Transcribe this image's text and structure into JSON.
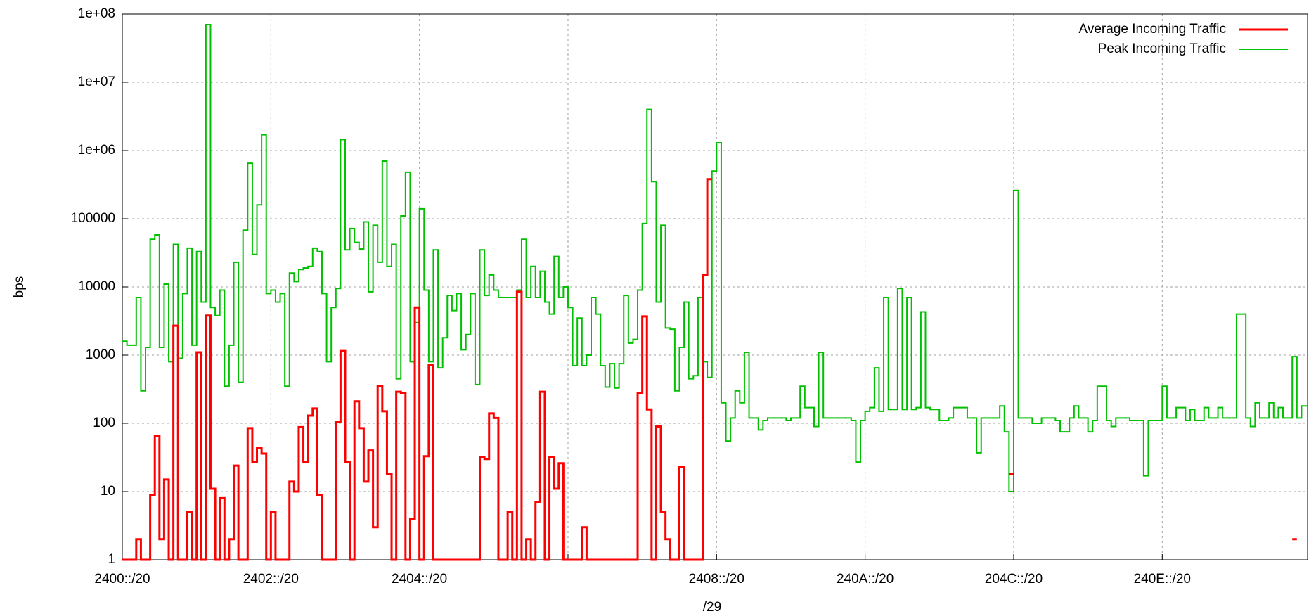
{
  "chart_data": {
    "type": "line",
    "step": true,
    "xlabel": "/29",
    "ylabel": "bps",
    "log_y": true,
    "grid": true,
    "legend": "upper right",
    "xlim": [
      0,
      255.3
    ],
    "xticks": [
      {
        "value": 0,
        "label": "2400::/20"
      },
      {
        "value": 32,
        "label": "2402::/20"
      },
      {
        "value": 64,
        "label": "2404::/20"
      },
      {
        "value": 96,
        "label": null
      },
      {
        "value": 128,
        "label": "2408::/20"
      },
      {
        "value": 160,
        "label": "240A::/20"
      },
      {
        "value": 192,
        "label": "204C::/20"
      },
      {
        "value": 224,
        "label": "240E::/20"
      }
    ],
    "ylim": [
      1,
      100000000
    ],
    "yticks": [
      1,
      10,
      100,
      1000,
      10000,
      100000,
      {
        "value": 1000000,
        "label": "1e+06"
      },
      {
        "value": 10000000,
        "label": "1e+07"
      },
      {
        "value": 100000000,
        "label": "1e+08"
      }
    ],
    "series": [
      {
        "name": "Average Incoming Traffic",
        "color": "#ff0000",
        "x": [
          0,
          3,
          4,
          6,
          7,
          8,
          9,
          10,
          11,
          12,
          14,
          15,
          16,
          17,
          18,
          19,
          20,
          21,
          22,
          23,
          24,
          25,
          27,
          28,
          29,
          30,
          31,
          32,
          33,
          36,
          37,
          38,
          39,
          40,
          41,
          42,
          43,
          46,
          47,
          48,
          49,
          50,
          51,
          52,
          53,
          54,
          55,
          56,
          57,
          58,
          59,
          60,
          61,
          62,
          63,
          64,
          65,
          66,
          67,
          76,
          77,
          78,
          79,
          80,
          81,
          83,
          84,
          85,
          86,
          87,
          88,
          89,
          90,
          91,
          92,
          93,
          94,
          95,
          99,
          100,
          111,
          112,
          113,
          114,
          115,
          116,
          117,
          118,
          120,
          121,
          125,
          126,
          127,
          191,
          192,
          252,
          253
        ],
        "values": [
          1,
          2,
          1,
          9,
          65,
          2,
          15,
          1,
          2700,
          1,
          5,
          1,
          1100,
          1,
          3800,
          11,
          1,
          8,
          1,
          2,
          24,
          1,
          85,
          27,
          43,
          36,
          1,
          5,
          1,
          14,
          10,
          88,
          27,
          130,
          165,
          9,
          1,
          105,
          1150,
          27,
          1,
          210,
          85,
          14,
          40,
          3,
          350,
          150,
          18,
          1,
          290,
          280,
          1,
          4,
          5000,
          1,
          33,
          720,
          1,
          1,
          32,
          30,
          140,
          120,
          1,
          5,
          1,
          8500,
          1,
          2,
          1,
          7,
          290,
          1,
          32,
          11,
          26,
          1,
          3,
          1,
          280,
          3700,
          160,
          1,
          90,
          5,
          2,
          1,
          23,
          1,
          15000,
          380000,
          null,
          18,
          null,
          2,
          null
        ]
      },
      {
        "name": "Peak Incoming Traffic",
        "color": "#00c000",
        "x": [
          0,
          1,
          3,
          4,
          5,
          6,
          7,
          8,
          9,
          10,
          11,
          12,
          13,
          14,
          15,
          16,
          17,
          18,
          19,
          20,
          21,
          22,
          23,
          24,
          25,
          26,
          27,
          28,
          29,
          30,
          31,
          32,
          33,
          34,
          35,
          36,
          37,
          38,
          39,
          40,
          41,
          42,
          43,
          44,
          45,
          46,
          47,
          48,
          49,
          50,
          51,
          52,
          53,
          54,
          55,
          56,
          57,
          58,
          59,
          60,
          61,
          62,
          63,
          64,
          65,
          66,
          67,
          68,
          69,
          70,
          71,
          72,
          73,
          74,
          75,
          76,
          77,
          78,
          79,
          80,
          81,
          82,
          83,
          84,
          85,
          86,
          87,
          88,
          89,
          90,
          91,
          92,
          93,
          94,
          95,
          96,
          97,
          98,
          99,
          100,
          101,
          102,
          103,
          104,
          105,
          106,
          107,
          108,
          109,
          110,
          111,
          112,
          113,
          114,
          115,
          116,
          117,
          118,
          119,
          120,
          121,
          122,
          123,
          124,
          125,
          126,
          127,
          128,
          129,
          130,
          131,
          132,
          133,
          134,
          135,
          137,
          138,
          139,
          140,
          143,
          144,
          146,
          147,
          149,
          150,
          151,
          157,
          158,
          159,
          160,
          161,
          162,
          163,
          164,
          165,
          166,
          167,
          168,
          169,
          170,
          171,
          172,
          173,
          174,
          176,
          178,
          179,
          182,
          183,
          184,
          185,
          189,
          190,
          191,
          192,
          193,
          196,
          198,
          201,
          202,
          204,
          205,
          206,
          208,
          209,
          210,
          212,
          213,
          214,
          217,
          219,
          220,
          221,
          223,
          224,
          225,
          227,
          229,
          230,
          231,
          232,
          233,
          234,
          236,
          237,
          240,
          242,
          243,
          244,
          245,
          247,
          248,
          249,
          250,
          252,
          253,
          254
        ],
        "values": [
          1600,
          1400,
          7000,
          300,
          1300,
          50000,
          58000,
          1300,
          11000,
          800,
          42000,
          900,
          8000,
          37000,
          1400,
          33000,
          6000,
          70000000,
          5000,
          3800,
          9000,
          350,
          1400,
          23000,
          400,
          68000,
          650000,
          30000,
          160000,
          1700000,
          8000,
          9000,
          6000,
          8000,
          350,
          16000,
          12000,
          18000,
          19000,
          20000,
          37000,
          33000,
          8000,
          800,
          5000,
          9500,
          1450000,
          35000,
          72000,
          45000,
          36000,
          90000,
          8500,
          80000,
          23000,
          700000,
          20000,
          42000,
          450,
          110000,
          480000,
          800,
          3000,
          140000,
          9000,
          800,
          35000,
          650,
          1800,
          7500,
          4500,
          8000,
          1200,
          2000,
          8000,
          370,
          35000,
          7500,
          15000,
          9000,
          7000,
          7000,
          7000,
          7000,
          9000,
          50000,
          7000,
          20000,
          7000,
          17000,
          6000,
          4000,
          28000,
          7000,
          10000,
          5000,
          700,
          3500,
          700,
          1000,
          7000,
          4000,
          700,
          340,
          750,
          330,
          750,
          7500,
          1500,
          1700,
          9000,
          85000,
          4000000,
          350000,
          6000,
          80000,
          2500,
          2400,
          300,
          1300,
          6000,
          450,
          500,
          7000,
          800,
          470,
          500000,
          1300000,
          200,
          55,
          120,
          300,
          200,
          1100,
          120,
          80,
          110,
          120,
          120,
          110,
          120,
          350,
          170,
          90,
          1100,
          120,
          110,
          27,
          110,
          150,
          170,
          650,
          150,
          7000,
          160,
          160,
          9500,
          160,
          7000,
          160,
          170,
          4300,
          170,
          160,
          110,
          120,
          170,
          120,
          120,
          37,
          120,
          180,
          75,
          10,
          260000,
          120,
          100,
          120,
          110,
          75,
          120,
          180,
          120,
          75,
          110,
          350,
          110,
          90,
          120,
          110,
          110,
          17,
          110,
          110,
          350,
          120,
          170,
          110,
          160,
          110,
          110,
          170,
          120,
          170,
          120,
          4000,
          120,
          90,
          200,
          120,
          200,
          120,
          170,
          120,
          950,
          120,
          180
        ]
      }
    ]
  }
}
